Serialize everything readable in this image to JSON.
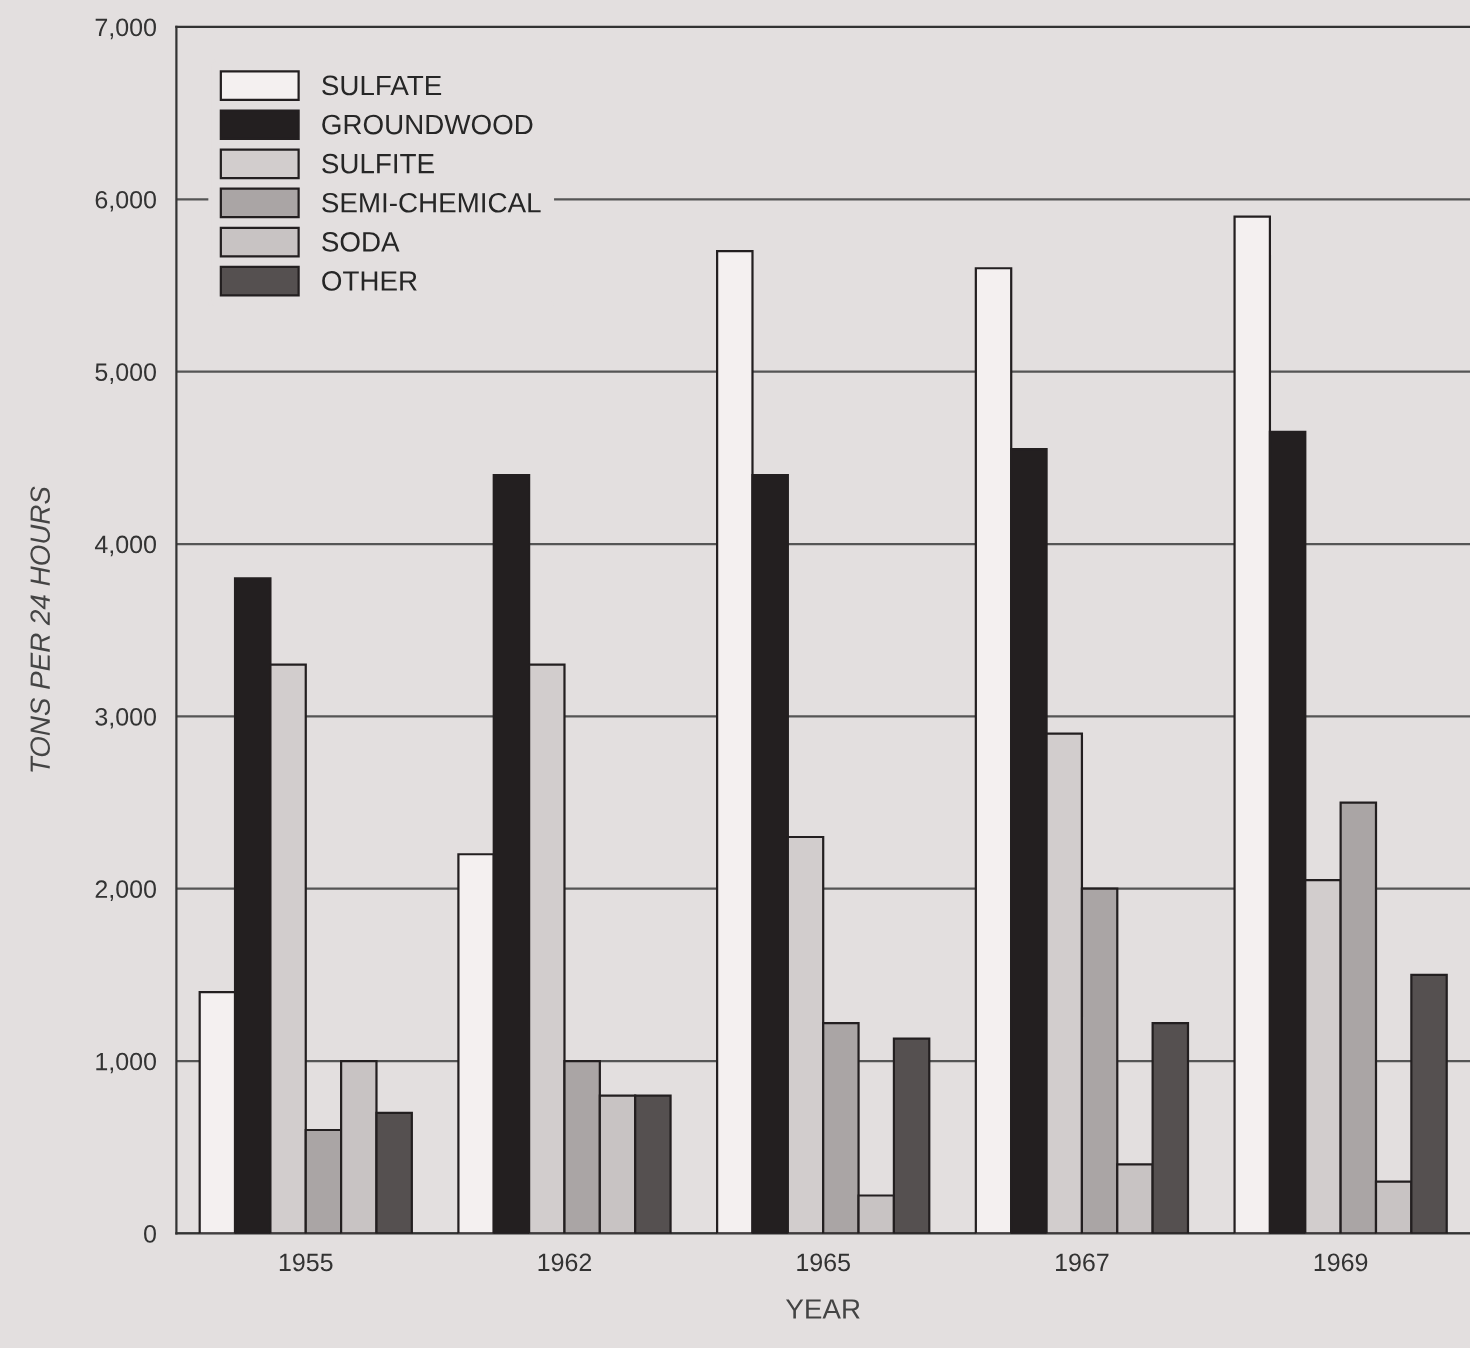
{
  "chart_data": {
    "type": "bar",
    "xlabel": "YEAR",
    "ylabel": "TONS PER 24 HOURS",
    "categories": [
      "1955",
      "1962",
      "1965",
      "1967",
      "1969"
    ],
    "series": [
      {
        "name": "SULFATE",
        "color": "#f4f0f0",
        "values": [
          1400,
          2200,
          5700,
          5600,
          5900
        ]
      },
      {
        "name": "GROUNDWOOD",
        "color": "#231f20",
        "values": [
          3800,
          4400,
          4400,
          4550,
          4650
        ]
      },
      {
        "name": "SULFITE",
        "color": "#d2cdcd",
        "values": [
          3300,
          3300,
          2300,
          2900,
          2050
        ]
      },
      {
        "name": "SEMI-CHEMICAL",
        "color": "#aaa5a5",
        "values": [
          600,
          1000,
          1220,
          2000,
          2500
        ]
      },
      {
        "name": "SODA",
        "color": "#c8c3c3",
        "values": [
          1000,
          800,
          220,
          400,
          300
        ]
      },
      {
        "name": "OTHER",
        "color": "#555050",
        "values": [
          700,
          800,
          1130,
          1220,
          1500
        ]
      }
    ],
    "ylim": [
      0,
      7000
    ],
    "yticks": [
      0,
      {
        "value": 1000,
        "label": "1,000"
      },
      {
        "value": 2000,
        "label": "2,000"
      },
      {
        "value": 3000,
        "label": "3,000"
      },
      {
        "value": 4000,
        "label": "4,000"
      },
      {
        "value": 5000,
        "label": "5,000"
      },
      {
        "value": 6000,
        "label": "6,000"
      },
      {
        "value": 7000,
        "label": "7,000"
      }
    ],
    "grid": "y",
    "legend": "top left"
  }
}
